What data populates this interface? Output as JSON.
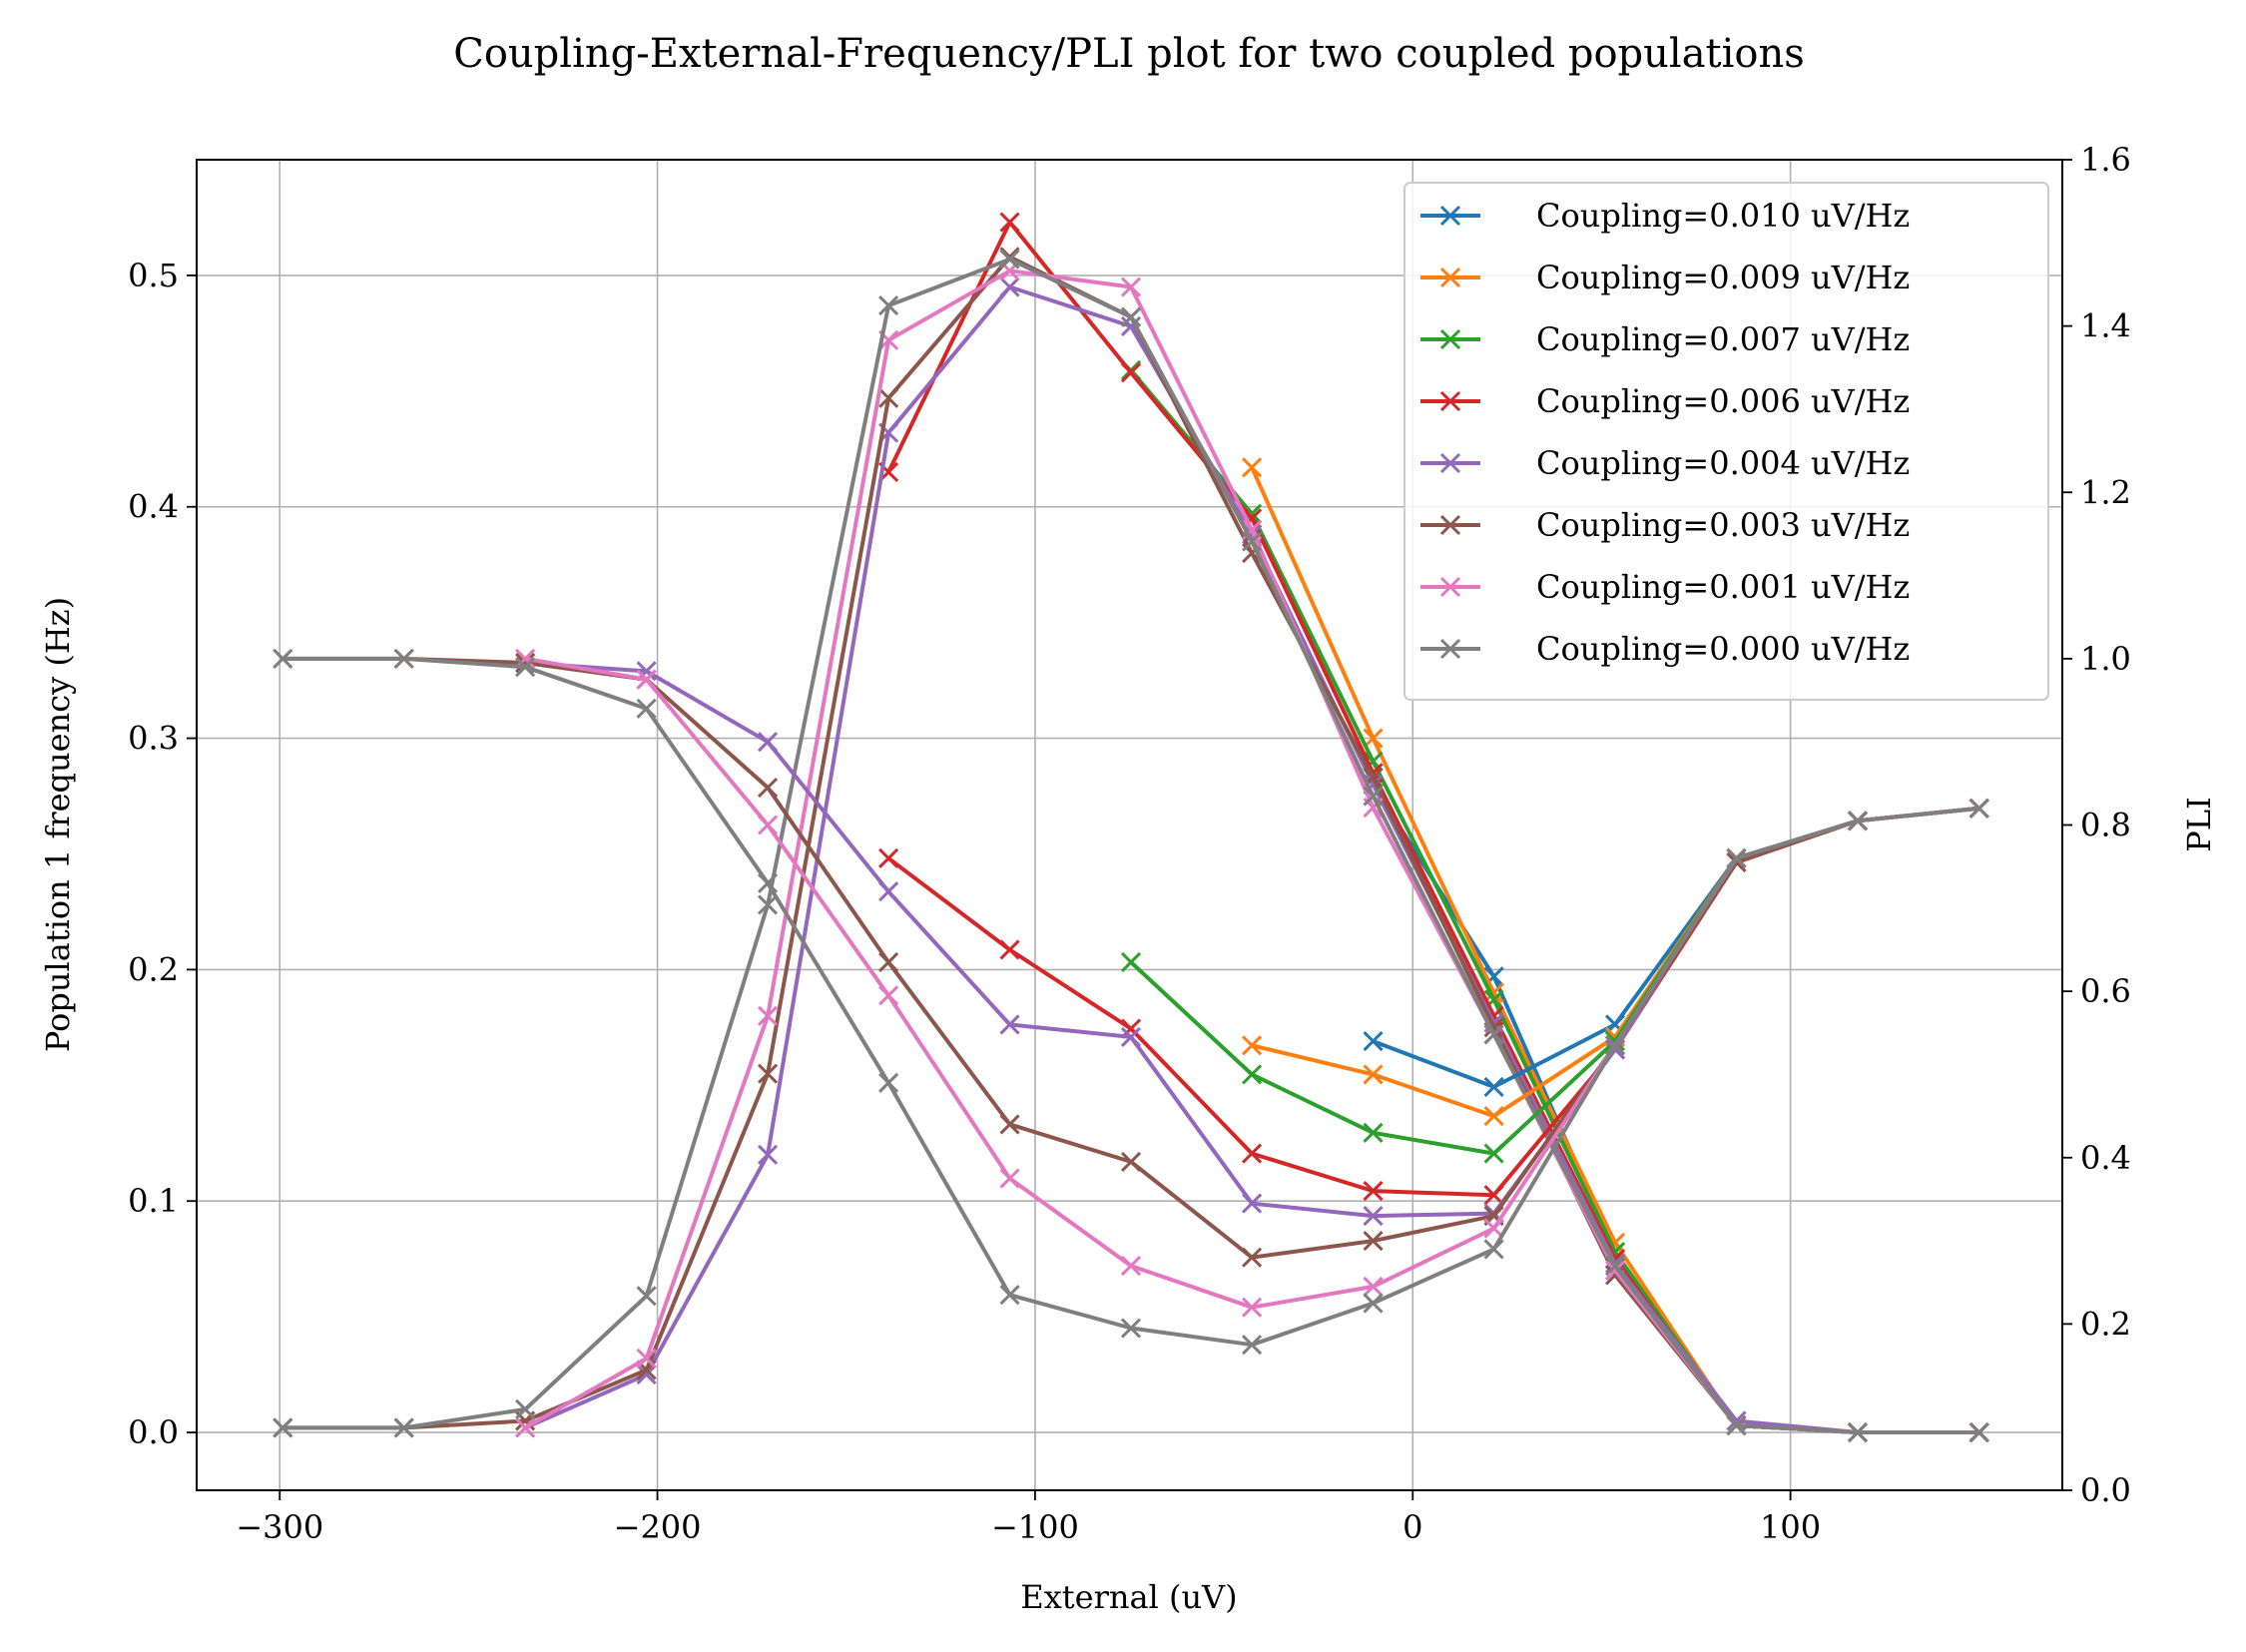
{
  "chart_data": {
    "type": "line",
    "title": "Coupling-External-Frequency/PLI plot for two coupled populations",
    "xlabel": "External (uV)",
    "ylabel": "Population 1 frequency (Hz)",
    "y2label": "PLI",
    "xlim": [
      -322,
      172
    ],
    "ylim": [
      -0.025,
      0.55
    ],
    "y2lim": [
      0.0,
      1.6
    ],
    "xticks": [
      -300,
      -200,
      -100,
      0,
      100
    ],
    "xtick_labels": [
      "−300",
      "−200",
      "−100",
      "0",
      "100"
    ],
    "yticks": [
      0.0,
      0.1,
      0.2,
      0.3,
      0.4,
      0.5
    ],
    "ytick_labels": [
      "0.0",
      "0.1",
      "0.2",
      "0.3",
      "0.4",
      "0.5"
    ],
    "y2ticks": [
      0.0,
      0.2,
      0.4,
      0.6,
      0.8,
      1.0,
      1.2,
      1.4,
      1.6
    ],
    "y2tick_labels": [
      "0.0",
      "0.2",
      "0.4",
      "0.6",
      "0.8",
      "1.0",
      "1.2",
      "1.4",
      "1.6"
    ],
    "grid": true,
    "legend_position": "top-right",
    "marker": "x",
    "series": [
      {
        "name": "Coupling=0.010 uV/Hz",
        "color": "#1f77b4",
        "freq": [
          [
            -10.5,
            0.28
          ],
          [
            21.5,
            0.197
          ],
          [
            53.6,
            0.078
          ],
          [
            85.7,
            0.003
          ],
          [
            117.8,
            0.0
          ],
          [
            150,
            0.0
          ]
        ],
        "pli": [
          [
            -10.5,
            0.54
          ],
          [
            21.5,
            0.485
          ],
          [
            53.6,
            0.56
          ],
          [
            85.7,
            0.76
          ],
          [
            117.8,
            0.805
          ],
          [
            150,
            0.82
          ]
        ]
      },
      {
        "name": "Coupling=0.009 uV/Hz",
        "color": "#ff7f0e",
        "freq": [
          [
            -42.6,
            0.417
          ],
          [
            -10.5,
            0.3
          ],
          [
            21.5,
            0.19
          ],
          [
            53.6,
            0.082
          ],
          [
            85.7,
            0.003
          ],
          [
            117.8,
            0.0
          ],
          [
            150,
            0.0
          ]
        ],
        "pli": [
          [
            -42.6,
            0.535
          ],
          [
            -10.5,
            0.5
          ],
          [
            21.5,
            0.45
          ],
          [
            53.6,
            0.545
          ],
          [
            85.7,
            0.76
          ],
          [
            117.8,
            0.805
          ],
          [
            150,
            0.82
          ]
        ]
      },
      {
        "name": "Coupling=0.007 uV/Hz",
        "color": "#2ca02c",
        "freq": [
          [
            -74.6,
            0.459
          ],
          [
            -42.6,
            0.397
          ],
          [
            -10.5,
            0.29
          ],
          [
            21.5,
            0.187
          ],
          [
            53.6,
            0.078
          ],
          [
            85.7,
            0.003
          ],
          [
            117.8,
            0.0
          ],
          [
            150,
            0.0
          ]
        ],
        "pli": [
          [
            -74.6,
            0.635
          ],
          [
            -42.6,
            0.5
          ],
          [
            -10.5,
            0.43
          ],
          [
            21.5,
            0.405
          ],
          [
            53.6,
            0.54
          ],
          [
            85.7,
            0.76
          ],
          [
            117.8,
            0.805
          ],
          [
            150,
            0.82
          ]
        ]
      },
      {
        "name": "Coupling=0.006 uV/Hz",
        "color": "#d62728",
        "freq": [
          [
            -138.8,
            0.415
          ],
          [
            -106.7,
            0.523
          ],
          [
            -74.6,
            0.458
          ],
          [
            -42.6,
            0.395
          ],
          [
            -10.5,
            0.285
          ],
          [
            21.5,
            0.18
          ],
          [
            53.6,
            0.075
          ],
          [
            85.7,
            0.003
          ],
          [
            117.8,
            0.0
          ],
          [
            150,
            0.0
          ]
        ],
        "pli": [
          [
            -138.8,
            0.76
          ],
          [
            -106.7,
            0.65
          ],
          [
            -74.6,
            0.555
          ],
          [
            -42.6,
            0.405
          ],
          [
            -10.5,
            0.36
          ],
          [
            21.5,
            0.355
          ],
          [
            53.6,
            0.53
          ],
          [
            85.7,
            0.755
          ],
          [
            117.8,
            0.805
          ],
          [
            150,
            0.82
          ]
        ]
      },
      {
        "name": "Coupling=0.004 uV/Hz",
        "color": "#9467bd",
        "freq": [
          [
            -235,
            0.002
          ],
          [
            -202.9,
            0.025
          ],
          [
            -170.8,
            0.12
          ],
          [
            -138.8,
            0.432
          ],
          [
            -106.7,
            0.495
          ],
          [
            -74.6,
            0.478
          ],
          [
            -42.6,
            0.388
          ],
          [
            -10.5,
            0.28
          ],
          [
            21.5,
            0.177
          ],
          [
            53.6,
            0.073
          ],
          [
            85.7,
            0.005
          ],
          [
            117.8,
            0.0
          ],
          [
            150,
            0.0
          ]
        ],
        "pli": [
          [
            -235,
            0.995
          ],
          [
            -202.9,
            0.985
          ],
          [
            -170.8,
            0.9
          ],
          [
            -138.8,
            0.72
          ],
          [
            -106.7,
            0.56
          ],
          [
            -74.6,
            0.545
          ],
          [
            -42.6,
            0.345
          ],
          [
            -10.5,
            0.33
          ],
          [
            21.5,
            0.333
          ],
          [
            53.6,
            0.53
          ],
          [
            85.7,
            0.76
          ],
          [
            117.8,
            0.805
          ],
          [
            150,
            0.82
          ]
        ]
      },
      {
        "name": "Coupling=0.003 uV/Hz",
        "color": "#8c564b",
        "freq": [
          [
            -299.2,
            0.002
          ],
          [
            -267.1,
            0.002
          ],
          [
            -235,
            0.005
          ],
          [
            -202.9,
            0.027
          ],
          [
            -170.8,
            0.155
          ],
          [
            -138.8,
            0.447
          ],
          [
            -106.7,
            0.508
          ],
          [
            -74.6,
            0.482
          ],
          [
            -42.6,
            0.38
          ],
          [
            -10.5,
            0.283
          ],
          [
            21.5,
            0.175
          ],
          [
            53.6,
            0.068
          ],
          [
            85.7,
            0.003
          ],
          [
            117.8,
            0.0
          ],
          [
            150,
            0.0
          ]
        ],
        "pli": [
          [
            -299.2,
            1.0
          ],
          [
            -267.1,
            1.0
          ],
          [
            -235,
            0.995
          ],
          [
            -202.9,
            0.975
          ],
          [
            -170.8,
            0.845
          ],
          [
            -138.8,
            0.635
          ],
          [
            -106.7,
            0.44
          ],
          [
            -74.6,
            0.395
          ],
          [
            -42.6,
            0.28
          ],
          [
            -10.5,
            0.3
          ],
          [
            21.5,
            0.33
          ],
          [
            53.6,
            0.535
          ],
          [
            85.7,
            0.755
          ],
          [
            117.8,
            0.805
          ],
          [
            150,
            0.82
          ]
        ]
      },
      {
        "name": "Coupling=0.001 uV/Hz",
        "color": "#e377c2",
        "freq": [
          [
            -235,
            0.002
          ],
          [
            -202.9,
            0.032
          ],
          [
            -170.8,
            0.18
          ],
          [
            -138.8,
            0.472
          ],
          [
            -106.7,
            0.502
          ],
          [
            -74.6,
            0.495
          ],
          [
            -42.6,
            0.39
          ],
          [
            -10.5,
            0.27
          ],
          [
            21.5,
            0.172
          ],
          [
            53.6,
            0.07
          ],
          [
            85.7,
            0.003
          ],
          [
            117.8,
            0.0
          ],
          [
            150,
            0.0
          ]
        ],
        "pli": [
          [
            -235,
            1.0
          ],
          [
            -202.9,
            0.975
          ],
          [
            -170.8,
            0.8
          ],
          [
            -138.8,
            0.595
          ],
          [
            -106.7,
            0.375
          ],
          [
            -74.6,
            0.27
          ],
          [
            -42.6,
            0.22
          ],
          [
            -10.5,
            0.245
          ],
          [
            21.5,
            0.315
          ],
          [
            53.6,
            0.535
          ],
          [
            85.7,
            0.76
          ],
          [
            117.8,
            0.805
          ],
          [
            150,
            0.82
          ]
        ]
      },
      {
        "name": "Coupling=0.000 uV/Hz",
        "color": "#7f7f7f",
        "freq": [
          [
            -299.2,
            0.002
          ],
          [
            -267.1,
            0.002
          ],
          [
            -235,
            0.01
          ],
          [
            -202.9,
            0.059
          ],
          [
            -170.8,
            0.228
          ],
          [
            -138.8,
            0.487
          ],
          [
            -106.7,
            0.507
          ],
          [
            -74.6,
            0.482
          ],
          [
            -42.6,
            0.385
          ],
          [
            -10.5,
            0.275
          ],
          [
            21.5,
            0.172
          ],
          [
            53.6,
            0.072
          ],
          [
            85.7,
            0.003
          ],
          [
            117.8,
            0.0
          ],
          [
            150,
            0.0
          ]
        ],
        "pli": [
          [
            -299.2,
            1.0
          ],
          [
            -267.1,
            1.0
          ],
          [
            -235,
            0.99
          ],
          [
            -202.9,
            0.94
          ],
          [
            -170.8,
            0.73
          ],
          [
            -138.8,
            0.49
          ],
          [
            -106.7,
            0.235
          ],
          [
            -74.6,
            0.195
          ],
          [
            -42.6,
            0.175
          ],
          [
            -10.5,
            0.225
          ],
          [
            21.5,
            0.29
          ],
          [
            53.6,
            0.535
          ],
          [
            85.7,
            0.76
          ],
          [
            117.8,
            0.805
          ],
          [
            150,
            0.82
          ]
        ]
      }
    ]
  }
}
